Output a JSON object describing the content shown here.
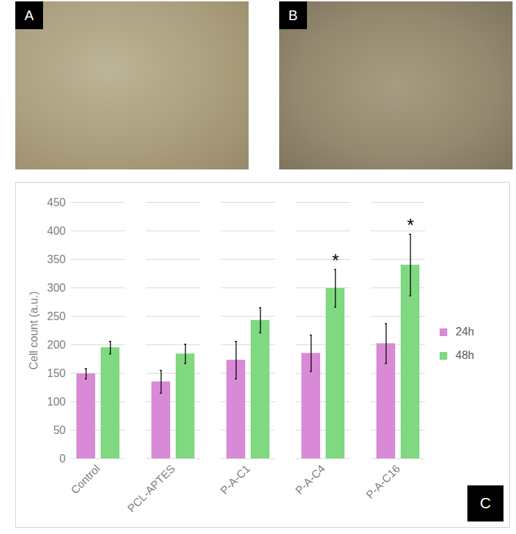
{
  "panel_labels": [
    "A",
    "B",
    "C"
  ],
  "chart_data": {
    "type": "bar",
    "y_label": "Cell count (a.u.)",
    "categories": [
      "Control",
      "PCL-APTES",
      "P-A-C1",
      "P-A-C4",
      "P-A-C16"
    ],
    "series": [
      {
        "name": "24h",
        "color": "#d98ad6",
        "values": [
          149,
          135,
          173,
          185,
          202
        ],
        "errors": [
          9,
          20,
          33,
          32,
          35
        ],
        "annotations": [
          null,
          null,
          null,
          null,
          null
        ]
      },
      {
        "name": "48h",
        "color": "#80d880",
        "values": [
          195,
          184,
          243,
          299,
          340
        ],
        "errors": [
          11,
          17,
          22,
          33,
          54
        ],
        "annotations": [
          null,
          null,
          null,
          "*",
          "*"
        ]
      }
    ],
    "ylim": [
      0,
      450
    ],
    "yticks": [
      0,
      50,
      100,
      150,
      200,
      250,
      300,
      350,
      400,
      450
    ],
    "grid": true,
    "legend": "right"
  }
}
